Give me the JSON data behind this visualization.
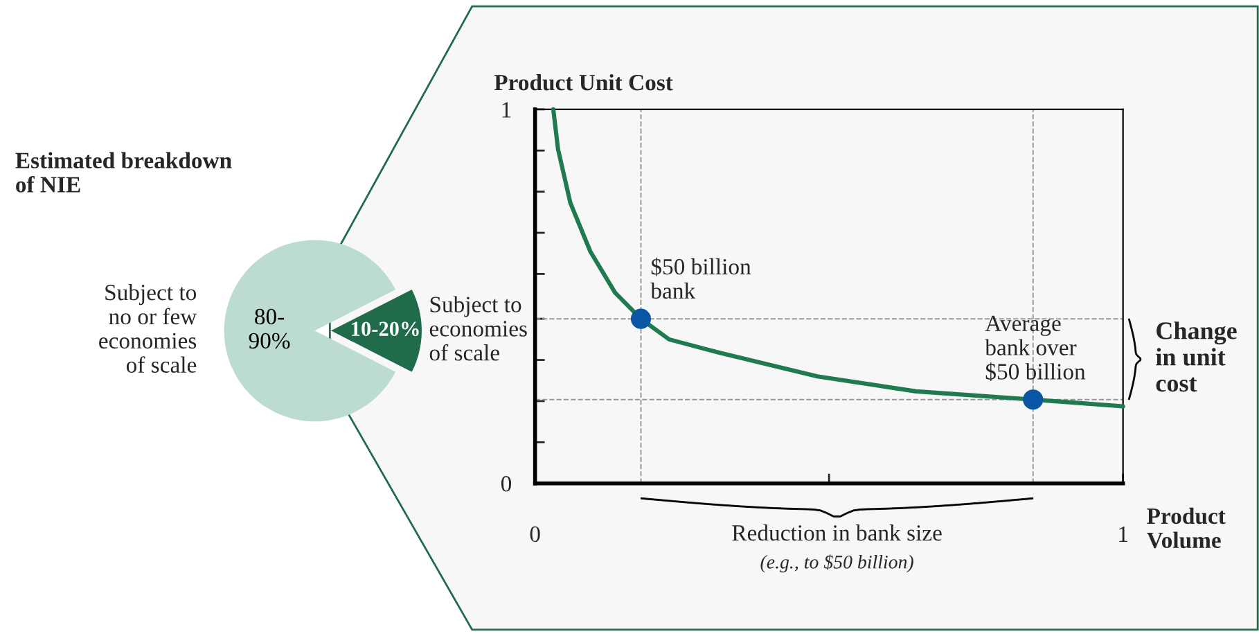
{
  "chart_data": [
    {
      "type": "pie",
      "title": "Estimated breakdown\nof NIE",
      "categories": [
        "Subject to\nno or few\neconomies\nof scale",
        "Subject to\neconomies\nof scale"
      ],
      "values": [
        85,
        15
      ],
      "colors": [
        "#bcdcd0",
        "#1f6b4a"
      ],
      "annotations": [
        "80-\n90%",
        "10-20%"
      ]
    },
    {
      "type": "line",
      "title": "Product Unit Cost",
      "xlabel": "Product\nVolume",
      "series": [
        {
          "type": "line",
          "color": "#1f7a4f",
          "x": [
            0.031,
            0.039,
            0.06,
            0.094,
            0.136,
            0.18,
            0.228,
            0.312,
            0.48,
            0.648,
            0.847,
            1.0
          ],
          "values": [
            1.0,
            0.894,
            0.75,
            0.62,
            0.51,
            0.44,
            0.385,
            0.35,
            0.286,
            0.246,
            0.224,
            0.206
          ]
        },
        {
          "type": "scatter",
          "color": "#0b56a4",
          "marker": "circle",
          "x": [
            0.18,
            0.847
          ],
          "values": [
            0.44,
            0.224
          ]
        }
      ],
      "xlim": [
        0,
        1
      ],
      "ylim": [
        0,
        1
      ],
      "xticks": [
        0,
        {
          "value": 0.5,
          "label": null
        },
        1
      ],
      "yticks": [
        0,
        {
          "value": 0.11,
          "label": null
        },
        {
          "value": 0.22,
          "label": null
        },
        {
          "value": 0.33,
          "label": null
        },
        {
          "value": 0.44,
          "label": null
        },
        {
          "value": 0.56,
          "label": null
        },
        {
          "value": 0.67,
          "label": null
        },
        {
          "value": 0.78,
          "label": null
        },
        {
          "value": 0.89,
          "label": null
        },
        1
      ],
      "ref_lines": [
        {
          "axis": "x",
          "value": 0.18,
          "color": "#999999",
          "line_style": "dashed"
        },
        {
          "axis": "x",
          "value": 0.847,
          "color": "#999999",
          "line_style": "dashed"
        },
        {
          "axis": "y",
          "value": 0.44,
          "color": "#999999",
          "line_style": "dashed"
        },
        {
          "axis": "y",
          "value": 0.224,
          "color": "#999999",
          "line_style": "dashed"
        }
      ],
      "annotations": [
        {
          "text": "$50 billion\nbank",
          "x": 0.18,
          "y": 0.44
        },
        {
          "text": "Average\nbank over\n$50 billion",
          "x": 0.847,
          "y": 0.224
        },
        "Change\nin unit\ncost",
        "Reduction in bank size",
        "(e.g., to $50 billion)"
      ],
      "grid": false,
      "legend": false
    }
  ]
}
